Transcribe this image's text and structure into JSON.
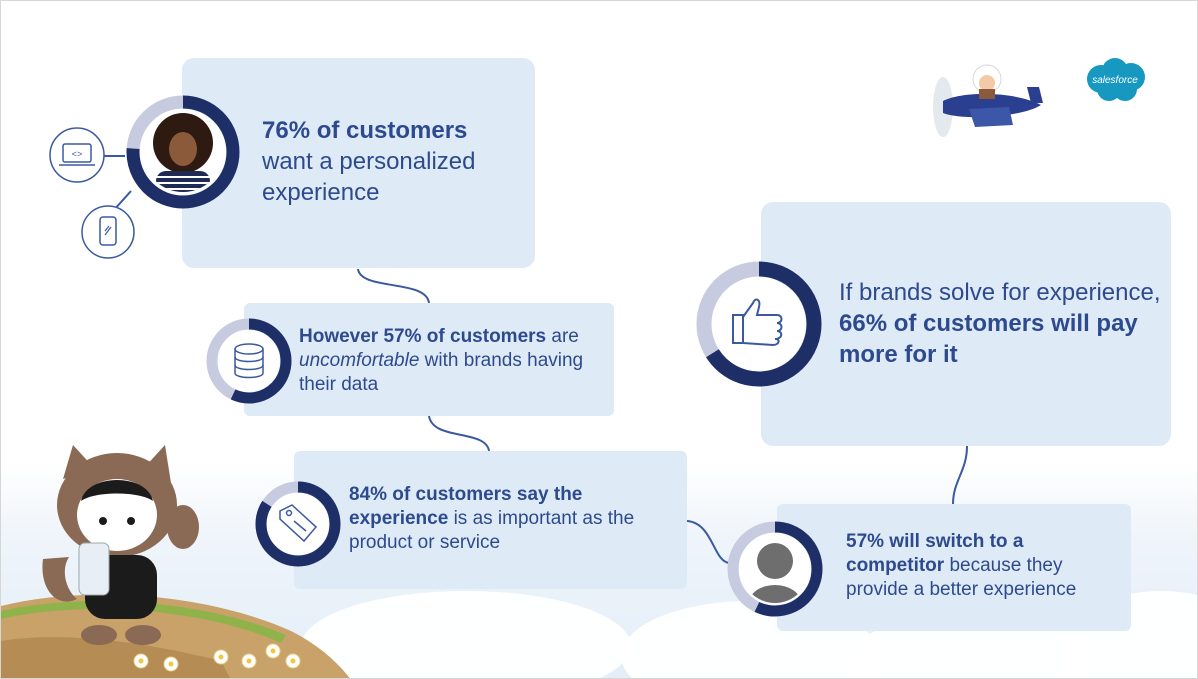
{
  "brand": {
    "logo_text": "salesforce"
  },
  "cards": {
    "personalized": {
      "highlight": "76% of customers",
      "rest": "want a personalized experience",
      "percent": 76
    },
    "uncomfortable": {
      "highlight": "However 57% of customers",
      "rest_a": " are ",
      "em": "uncomfortable",
      "rest_b": " with brands having their data",
      "percent": 57
    },
    "experience": {
      "highlight": "84% of customers say the experience",
      "rest": " is as important as the product or service",
      "percent": 84
    },
    "pay_more": {
      "lead": "If brands solve for experience,",
      "highlight": "66% of customers will pay more for it",
      "percent": 66
    },
    "switch": {
      "highlight": "57% will switch to a competitor",
      "rest": " because they provide a better experience",
      "percent": 57
    }
  },
  "colors": {
    "card": "#deebf6",
    "ring_dark": "#1d2f66",
    "ring_light": "#c6cbe0",
    "text": "#2e4a8e",
    "line": "#3a5aa0"
  }
}
